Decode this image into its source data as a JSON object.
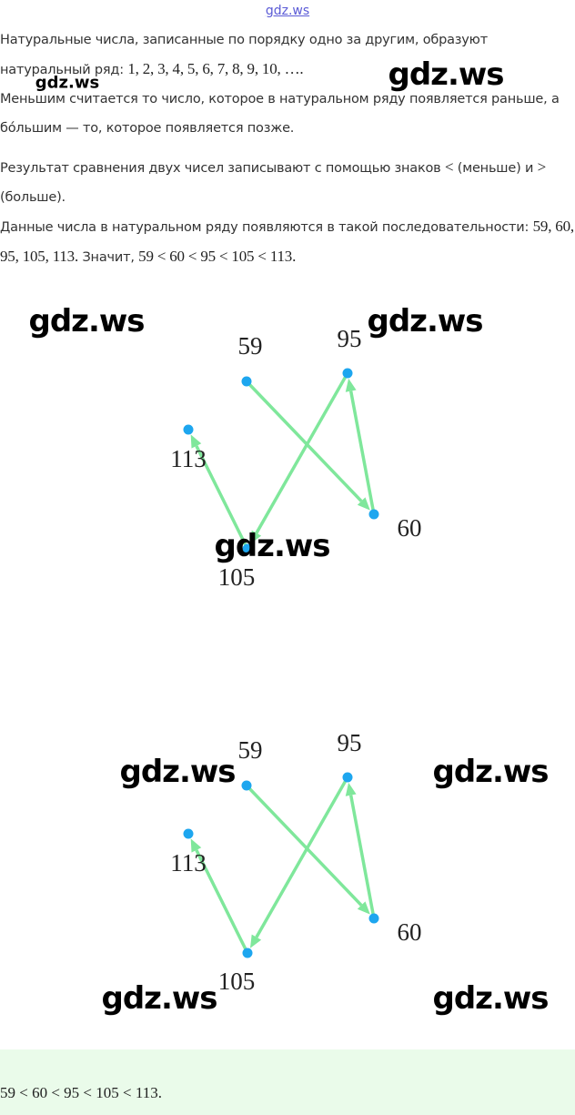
{
  "paragraphs": [
    [
      {
        "text": "Натуральные числа, записанные по порядку одно за другим, образуют натуральный ряд: "
      },
      {
        "text": "1,  2,  3,  4,  5,  6,  7,  8,  9,  10,  ….",
        "math": true
      }
    ],
    [
      {
        "text": "Меньшим считается то число, которое в натуральном ряду появляется раньше, а бо́льшим — то, которое появляется позже."
      }
    ],
    [
      {
        "text": "Результат сравнения двух чисел записывают с помощью знаков "
      },
      {
        "text": "<",
        "math": true
      },
      {
        "text": " (меньше) и "
      },
      {
        "text": ">",
        "math": true
      },
      {
        "text": " (больше)."
      }
    ],
    [
      {
        "text": "Данные числа в натуральном ряду появляются в такой последовательности: "
      },
      {
        "text": "59, 60, 95, 105, 113.",
        "math": true
      },
      {
        "text": " Значит, "
      },
      {
        "text": "59 < 60 < 95 < 105 < 113.",
        "math": true
      }
    ]
  ],
  "diagrams": [
    {
      "nodes": [
        "59",
        "95",
        "113",
        "60",
        "105"
      ]
    },
    {
      "nodes": [
        "59",
        "95",
        "113",
        "60",
        "105"
      ]
    }
  ],
  "answer": "59 < 60 < 95 < 105 < 113.",
  "watermarks": [
    "gdz.ws",
    "gdz.ws",
    "gdz.ws",
    "gdz.ws",
    "gdz.ws",
    "gdz.ws",
    "gdz.ws",
    "gdz.ws",
    "gdz.ws",
    "gdz.ws"
  ]
}
